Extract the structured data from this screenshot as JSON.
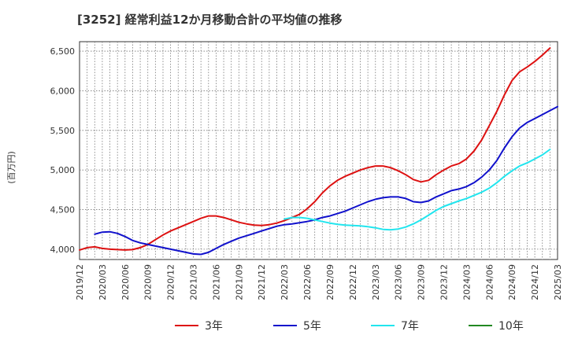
{
  "chart_data": {
    "type": "line",
    "title": "[3252]  経常利益12か月移動合計の平均値の推移",
    "ylabel": "(百万円)",
    "xlabel": "",
    "ylim": [
      3870,
      6620
    ],
    "y_ticks": [
      4000,
      4500,
      5000,
      5500,
      6000,
      6500
    ],
    "y_tick_labels": [
      "4,000",
      "4,500",
      "5,000",
      "5,500",
      "6,000",
      "6,500"
    ],
    "x_tick_labels": [
      "2019/12",
      "2020/03",
      "2020/06",
      "2020/09",
      "2020/12",
      "2021/03",
      "2021/06",
      "2021/09",
      "2021/12",
      "2022/03",
      "2022/06",
      "2022/09",
      "2022/12",
      "2023/03",
      "2023/06",
      "2023/09",
      "2023/12",
      "2024/03",
      "2024/06",
      "2024/09",
      "2024/12",
      "2025/03"
    ],
    "x_range": [
      "2019/12",
      "2025/03"
    ],
    "grid": true,
    "legend_position": "bottom",
    "series": [
      {
        "name": "3年",
        "color": "#dd1111",
        "start": "2019/12",
        "values": [
          3990,
          4020,
          4030,
          4010,
          4000,
          3995,
          3990,
          3995,
          4020,
          4060,
          4120,
          4180,
          4230,
          4270,
          4310,
          4350,
          4390,
          4420,
          4420,
          4400,
          4370,
          4340,
          4320,
          4305,
          4300,
          4310,
          4330,
          4360,
          4400,
          4440,
          4510,
          4600,
          4710,
          4800,
          4870,
          4920,
          4960,
          5000,
          5030,
          5050,
          5050,
          5030,
          4990,
          4940,
          4880,
          4850,
          4870,
          4940,
          5000,
          5050,
          5080,
          5140,
          5240,
          5380,
          5560,
          5740,
          5950,
          6130,
          6240,
          6300,
          6370,
          6450,
          6540
        ]
      },
      {
        "name": "5年",
        "color": "#1111cc",
        "start": "2020/02",
        "values": [
          4190,
          4215,
          4220,
          4200,
          4160,
          4110,
          4080,
          4060,
          4040,
          4020,
          4000,
          3980,
          3960,
          3940,
          3935,
          3960,
          4010,
          4060,
          4100,
          4140,
          4170,
          4200,
          4230,
          4260,
          4290,
          4310,
          4320,
          4335,
          4350,
          4370,
          4400,
          4420,
          4450,
          4480,
          4520,
          4560,
          4600,
          4630,
          4650,
          4660,
          4660,
          4640,
          4600,
          4590,
          4610,
          4660,
          4700,
          4740,
          4760,
          4790,
          4840,
          4910,
          5000,
          5120,
          5280,
          5420,
          5530,
          5600,
          5650,
          5700,
          5750,
          5800
        ]
      },
      {
        "name": "7年",
        "color": "#22e5ee",
        "start": "2022/03",
        "values": [
          4380,
          4400,
          4400,
          4390,
          4370,
          4350,
          4330,
          4315,
          4305,
          4300,
          4295,
          4285,
          4270,
          4250,
          4245,
          4255,
          4280,
          4320,
          4370,
          4430,
          4490,
          4540,
          4575,
          4610,
          4640,
          4680,
          4720,
          4770,
          4840,
          4920,
          4990,
          5050,
          5090,
          5140,
          5190,
          5260
        ]
      },
      {
        "name": "10年",
        "color": "#228822",
        "start": "",
        "values": []
      }
    ]
  }
}
